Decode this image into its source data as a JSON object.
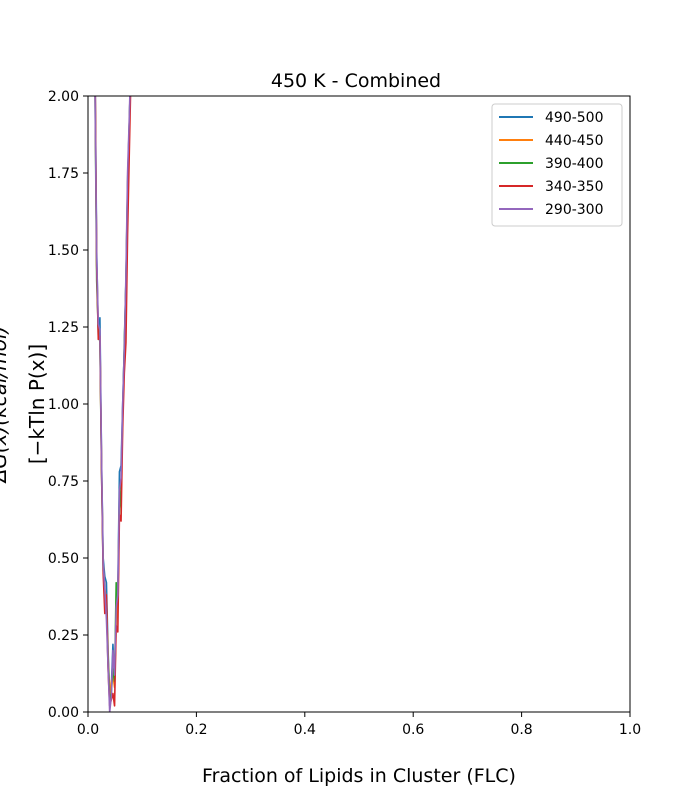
{
  "chart_data": {
    "type": "line",
    "title": "450 K - Combined",
    "xlabel": "Fraction of Lipids in Cluster (FLC)",
    "ylabel_line1": "ΔG(x)(kcal/mol)",
    "ylabel_line2": "[−kTln P(x)]",
    "xlim": [
      0.0,
      1.0
    ],
    "ylim": [
      0.0,
      2.0
    ],
    "x_ticks": [
      "0.0",
      "0.2",
      "0.4",
      "0.6",
      "0.8",
      "1.0"
    ],
    "x_tick_values": [
      0.0,
      0.2,
      0.4,
      0.6,
      0.8,
      1.0
    ],
    "y_ticks": [
      "0.00",
      "0.25",
      "0.50",
      "0.75",
      "1.00",
      "1.25",
      "1.50",
      "1.75",
      "2.00"
    ],
    "y_tick_values": [
      0.0,
      0.25,
      0.5,
      0.75,
      1.0,
      1.25,
      1.5,
      1.75,
      2.0
    ],
    "grid": false,
    "legend_position": "top-right",
    "series": [
      {
        "name": "490-500",
        "color": "#1f77b4",
        "x": [
          0.01,
          0.013,
          0.016,
          0.019,
          0.022,
          0.025,
          0.028,
          0.031,
          0.034,
          0.037,
          0.04,
          0.043,
          0.046,
          0.049,
          0.052,
          0.055,
          0.058,
          0.061,
          0.064,
          0.067,
          0.07,
          0.073,
          0.076,
          0.079
        ],
        "y": [
          2.6,
          2.1,
          1.5,
          1.22,
          1.28,
          0.82,
          0.5,
          0.44,
          0.42,
          0.2,
          0.06,
          0.08,
          0.22,
          0.1,
          0.3,
          0.4,
          0.78,
          0.8,
          1.0,
          1.18,
          1.4,
          1.7,
          1.9,
          2.1
        ]
      },
      {
        "name": "440-450",
        "color": "#ff7f0e",
        "x": [
          0.01,
          0.013,
          0.016,
          0.019,
          0.022,
          0.025,
          0.028,
          0.031,
          0.034,
          0.037,
          0.04,
          0.043,
          0.046,
          0.049,
          0.052,
          0.055,
          0.058,
          0.061,
          0.064,
          0.067,
          0.07,
          0.073,
          0.076,
          0.079
        ],
        "y": [
          2.5,
          2.05,
          1.45,
          1.25,
          1.22,
          0.8,
          0.48,
          0.4,
          0.36,
          0.18,
          0.05,
          0.1,
          0.12,
          0.08,
          0.28,
          0.36,
          0.7,
          0.72,
          0.98,
          1.15,
          1.38,
          1.68,
          1.88,
          2.08
        ]
      },
      {
        "name": "390-400",
        "color": "#2ca02c",
        "x": [
          0.01,
          0.013,
          0.016,
          0.019,
          0.022,
          0.025,
          0.028,
          0.031,
          0.034,
          0.037,
          0.04,
          0.043,
          0.046,
          0.049,
          0.052,
          0.055,
          0.058,
          0.061,
          0.064,
          0.067,
          0.07,
          0.073,
          0.076,
          0.079
        ],
        "y": [
          2.5,
          2.0,
          1.4,
          1.24,
          1.2,
          0.78,
          0.46,
          0.38,
          0.35,
          0.16,
          0.04,
          0.06,
          0.14,
          0.1,
          0.42,
          0.36,
          0.66,
          0.72,
          0.96,
          1.2,
          1.4,
          1.72,
          1.9,
          2.1
        ]
      },
      {
        "name": "340-350",
        "color": "#d62728",
        "x": [
          0.01,
          0.013,
          0.016,
          0.019,
          0.022,
          0.025,
          0.028,
          0.031,
          0.034,
          0.037,
          0.04,
          0.043,
          0.046,
          0.049,
          0.052,
          0.055,
          0.058,
          0.061,
          0.064,
          0.067,
          0.07,
          0.073,
          0.076,
          0.079
        ],
        "y": [
          2.6,
          2.1,
          1.45,
          1.21,
          1.22,
          0.78,
          0.45,
          0.32,
          0.38,
          0.14,
          0.02,
          0.04,
          0.06,
          0.02,
          0.28,
          0.26,
          0.64,
          0.62,
          0.92,
          1.1,
          1.2,
          1.55,
          1.8,
          2.05
        ]
      },
      {
        "name": "290-300",
        "color": "#9467bd",
        "x": [
          0.01,
          0.013,
          0.016,
          0.019,
          0.022,
          0.025,
          0.028,
          0.031,
          0.034,
          0.037,
          0.04,
          0.043,
          0.046,
          0.049,
          0.052,
          0.055,
          0.058,
          0.061,
          0.064,
          0.067,
          0.07,
          0.073,
          0.076,
          0.079
        ],
        "y": [
          2.5,
          2.0,
          1.48,
          1.26,
          1.24,
          0.82,
          0.48,
          0.4,
          0.3,
          0.15,
          0.0,
          0.05,
          0.2,
          0.12,
          0.34,
          0.38,
          0.72,
          0.76,
          1.0,
          1.18,
          1.42,
          1.75,
          1.92,
          2.12
        ]
      }
    ]
  }
}
